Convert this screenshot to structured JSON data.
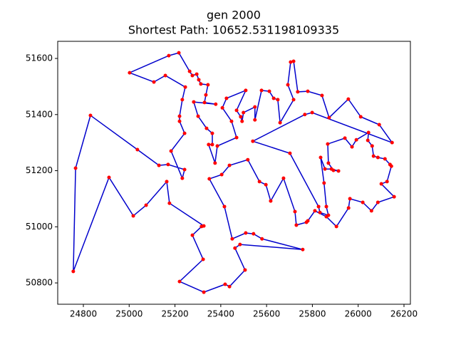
{
  "chart_data": {
    "type": "line",
    "title": "gen 2000",
    "subtitle": "Shortest Path: 10652.531198109335",
    "closed": true,
    "color": "#0000cc",
    "marker_color": "#ff0000",
    "xlim": [
      24688,
      26228
    ],
    "ylim": [
      50724,
      51661
    ],
    "xticks": [
      24800,
      25000,
      25200,
      25400,
      25600,
      25800,
      26000,
      26200
    ],
    "yticks": [
      50800,
      51000,
      51200,
      51400,
      51600
    ],
    "x": [
      24756,
      24766,
      24831,
      25036,
      25130,
      25170,
      25242,
      25232,
      25183,
      25242,
      25220,
      25220,
      25232,
      25245,
      25158,
      25108,
      25002,
      25173,
      25217,
      25264,
      25276,
      25295,
      25304,
      25313,
      25344,
      25335,
      25329,
      25378,
      25282,
      25301,
      25338,
      25363,
      25363,
      25347,
      25375,
      25385,
      25469,
      25447,
      25407,
      25425,
      25509,
      25469,
      25487,
      25493,
      25499,
      25549,
      25549,
      25578,
      25612,
      25631,
      25649,
      25659,
      25718,
      25693,
      25705,
      25718,
      25736,
      25780,
      25842,
      25873,
      25957,
      26011,
      26092,
      26148,
      25799,
      25767,
      25540,
      25702,
      25827,
      25833,
      25870,
      25861,
      25851,
      25836,
      25855,
      25883,
      25914,
      25892,
      25870,
      25867,
      25942,
      25973,
      25992,
      26045,
      26042,
      26061,
      26067,
      26086,
      26117,
      26139,
      26145,
      26126,
      26101,
      26157,
      26086,
      26058,
      26020,
      25964,
      25958,
      25905,
      25861,
      25811,
      25780,
      25774,
      25730,
      25724,
      25674,
      25618,
      25597,
      25569,
      25518,
      25438,
      25404,
      25350,
      25416,
      25450,
      25509,
      25543,
      25580,
      25758,
      25484,
      25462,
      25506,
      25438,
      25419,
      25326,
      25220,
      25323,
      25276,
      25316,
      25326,
      25176,
      25164,
      25074,
      25018,
      24912
    ],
    "values": [
      50841,
      51209,
      51397,
      51275,
      51219,
      51222,
      51204,
      51173,
      51270,
      51333,
      51376,
      51394,
      51453,
      51498,
      51539,
      51516,
      51549,
      51610,
      51620,
      51554,
      51539,
      51544,
      51524,
      51509,
      51506,
      51470,
      51443,
      51437,
      51445,
      51394,
      51351,
      51333,
      51293,
      51293,
      51227,
      51288,
      51318,
      51376,
      51424,
      51458,
      51486,
      51415,
      51392,
      51376,
      51407,
      51427,
      51381,
      51486,
      51483,
      51458,
      51453,
      51371,
      51453,
      51506,
      51587,
      51590,
      51481,
      51483,
      51468,
      51389,
      51455,
      51392,
      51364,
      51300,
      51407,
      51400,
      51305,
      51262,
      51072,
      51051,
      51041,
      51072,
      51156,
      51247,
      51206,
      51206,
      51199,
      51201,
      51227,
      51295,
      51316,
      51285,
      51310,
      51336,
      51308,
      51288,
      51252,
      51247,
      51242,
      51222,
      51216,
      51161,
      51153,
      51107,
      51087,
      51057,
      51087,
      51100,
      51067,
      51001,
      51036,
      51057,
      51021,
      51016,
      51006,
      51054,
      51173,
      51092,
      51150,
      51161,
      51239,
      51219,
      51186,
      51171,
      51072,
      50957,
      50978,
      50975,
      50957,
      50919,
      50937,
      50924,
      50846,
      50787,
      50795,
      50767,
      50805,
      50884,
      50970,
      51001,
      51003,
      51084,
      51161,
      51077,
      51039,
      51176
    ]
  }
}
